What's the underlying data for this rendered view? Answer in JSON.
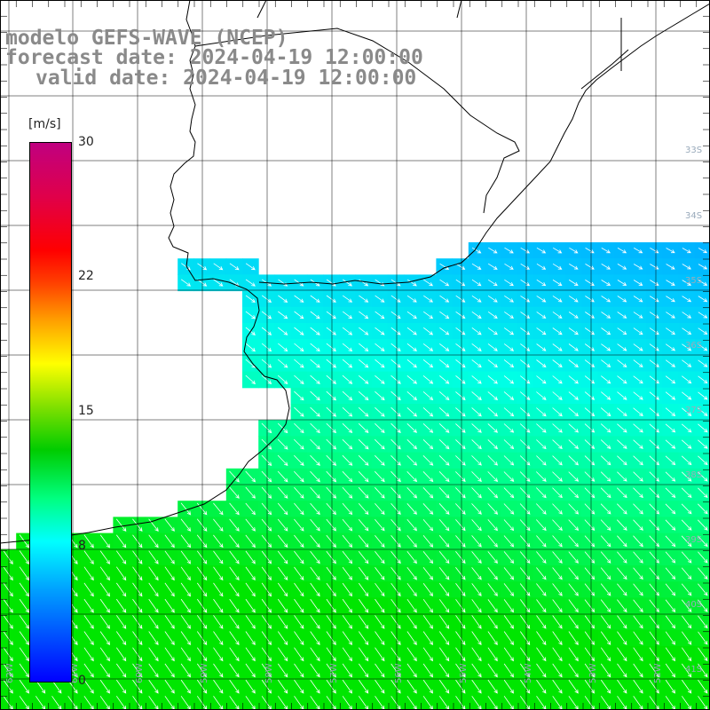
{
  "title": {
    "line1": "modelo GEFS-WAVE (NCEP)",
    "line2": "forecast date: 2024-04-19 12:00:00",
    "line3": "valid date: 2024-04-19 12:00:00"
  },
  "colorbar": {
    "unit": "[m/s]",
    "ticks": [
      "30",
      "22",
      "15",
      "8",
      "0"
    ],
    "colors": [
      "#0000ff",
      "#00a0ff",
      "#00ffff",
      "#00ff80",
      "#00cc00",
      "#ffff00",
      "#ff0000",
      "#c00080"
    ]
  },
  "map": {
    "lat_labels": [
      "33S",
      "34S",
      "35S",
      "36S",
      "37S",
      "38S",
      "39S",
      "40S",
      "41S"
    ],
    "lon_labels": [
      "62W",
      "61W",
      "60W",
      "59W",
      "58W",
      "57W",
      "56W",
      "55W",
      "54W",
      "53W",
      "52W"
    ],
    "field": "wind speed with direction arrows",
    "colors": {
      "land": "#ffffff",
      "coast": "#000000",
      "grid": "#000000",
      "arrow": "#ffffff"
    }
  }
}
